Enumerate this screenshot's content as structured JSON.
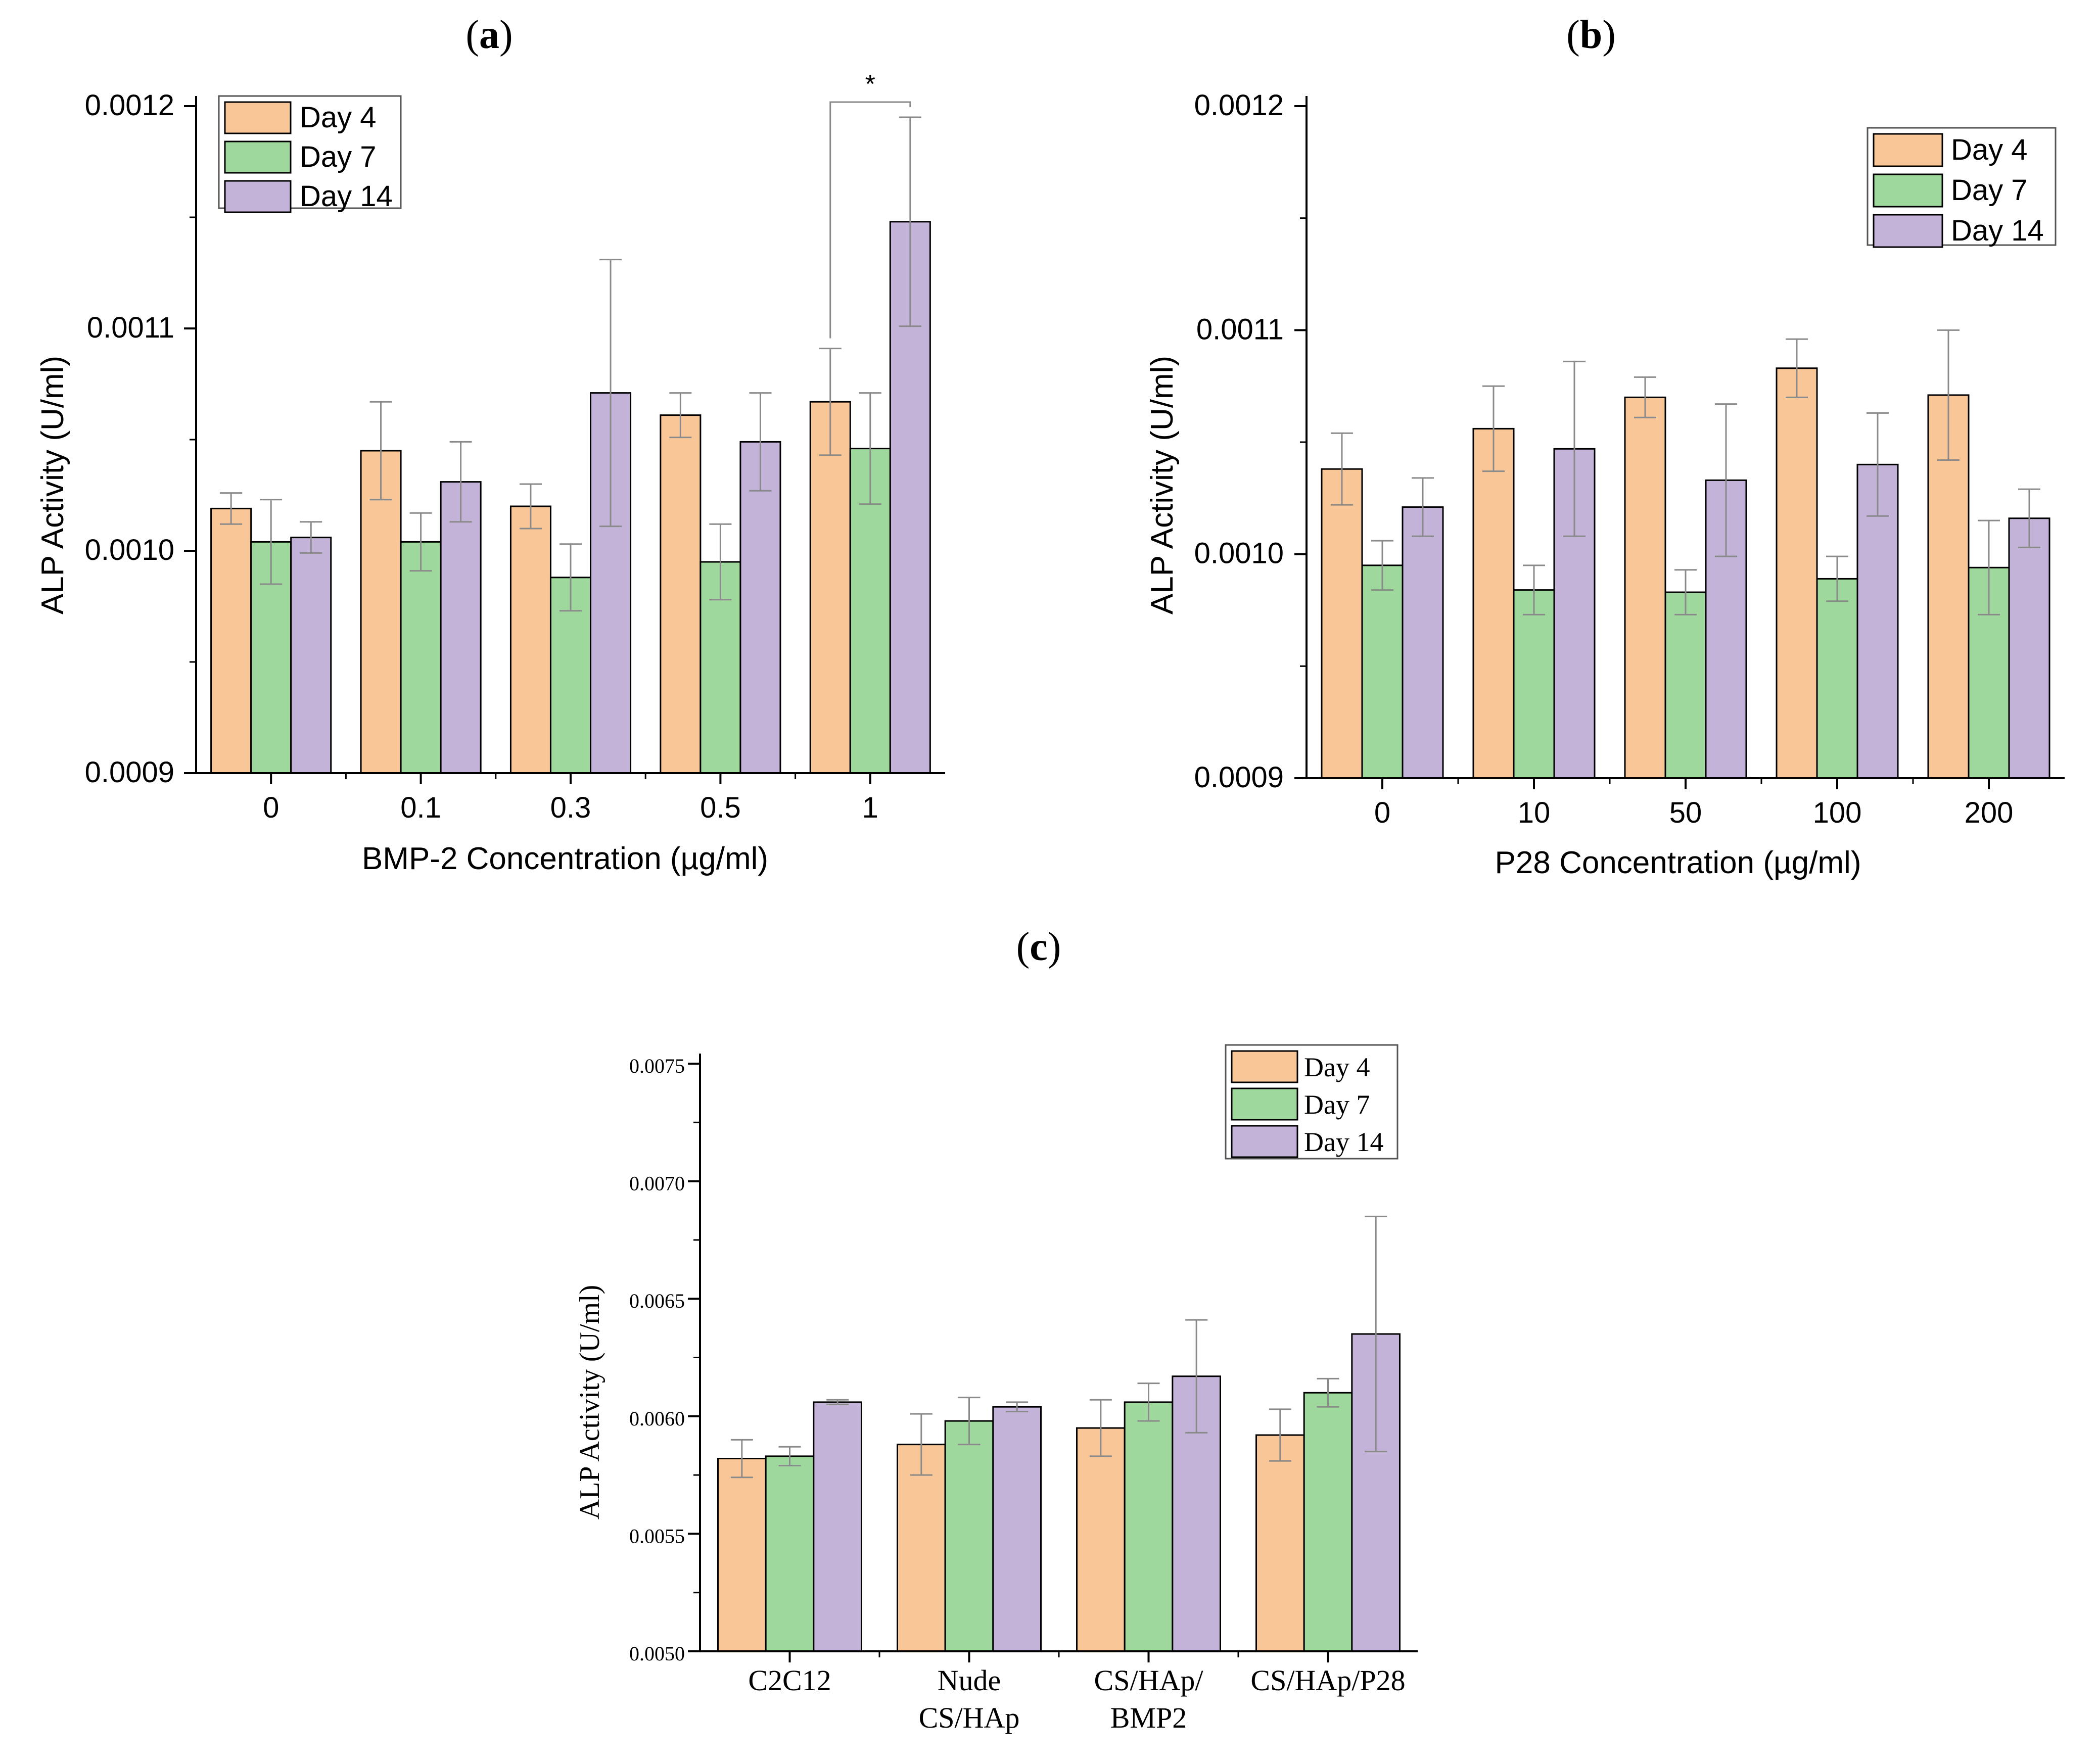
{
  "colors": {
    "day4": "#F9C698",
    "day7": "#9FD89D",
    "day14": "#C4B3D8",
    "error": "#8a8a8a"
  },
  "chart_data": [
    {
      "panel": "(a)",
      "panel_letter": "a",
      "type": "bar",
      "xlabel": "BMP-2 Concentration (µg/ml)",
      "ylabel": "ALP Activity (U/ml)",
      "categories": [
        "0",
        "0.1",
        "0.3",
        "0.5",
        "1"
      ],
      "ylim": [
        0.0009,
        0.0012
      ],
      "yticks": [
        "0.0009",
        "0.0010",
        "0.0011",
        "0.0012"
      ],
      "legend_position": "top-left",
      "series": [
        {
          "name": "Day 4",
          "values": [
            0.001019,
            0.001045,
            0.00102,
            0.001061,
            0.001067
          ],
          "errors": [
            7e-06,
            2.2e-05,
            1e-05,
            1e-05,
            2.4e-05
          ]
        },
        {
          "name": "Day 7",
          "values": [
            0.001004,
            0.001004,
            0.000988,
            0.000995,
            0.001046
          ],
          "errors": [
            1.9e-05,
            1.3e-05,
            1.5e-05,
            1.7e-05,
            2.5e-05
          ]
        },
        {
          "name": "Day 14",
          "values": [
            0.001006,
            0.001031,
            0.001071,
            0.001049,
            0.001148
          ],
          "errors": [
            7e-06,
            1.8e-05,
            6e-05,
            2.2e-05,
            4.7e-05
          ]
        }
      ],
      "annotations": [
        {
          "text": "*",
          "from_category": 4,
          "from_series": 0,
          "to_series": 2
        }
      ]
    },
    {
      "panel": "(b)",
      "panel_letter": "b",
      "type": "bar",
      "xlabel": "P28 Concentration (µg/ml)",
      "ylabel": "ALP Activity (U/ml)",
      "categories": [
        "0",
        "10",
        "50",
        "100",
        "200"
      ],
      "ylim": [
        0.0009,
        0.0012
      ],
      "yticks": [
        "0.0009",
        "0.0010",
        "0.0011",
        "0.0012"
      ],
      "legend_position": "top-right",
      "series": [
        {
          "name": "Day 4",
          "values": [
            0.001038,
            0.001056,
            0.00107,
            0.001083,
            0.001071
          ],
          "errors": [
            1.6e-05,
            1.9e-05,
            9e-06,
            1.3e-05,
            2.9e-05
          ]
        },
        {
          "name": "Day 7",
          "values": [
            0.000995,
            0.000984,
            0.000983,
            0.000989,
            0.000994
          ],
          "errors": [
            1.1e-05,
            1.1e-05,
            1e-05,
            1e-05,
            2.1e-05
          ]
        },
        {
          "name": "Day 14",
          "values": [
            0.001021,
            0.001047,
            0.001033,
            0.00104,
            0.001016
          ],
          "errors": [
            1.3e-05,
            3.9e-05,
            3.4e-05,
            2.3e-05,
            1.3e-05
          ]
        }
      ]
    },
    {
      "panel": "(c)",
      "panel_letter": "c",
      "type": "bar",
      "xlabel": "",
      "ylabel": "ALP Activity (U/ml)",
      "categories": [
        [
          "C2C12"
        ],
        [
          "Nude",
          "CS/HAp"
        ],
        [
          "CS/HAp/",
          "BMP2"
        ],
        [
          "CS/HAp/P28"
        ]
      ],
      "ylim": [
        0.005,
        0.0075
      ],
      "yticks": [
        "0.0050",
        "0.0055",
        "0.0060",
        "0.0065",
        "0.0070",
        "0.0075"
      ],
      "legend_position": "top-right",
      "series": [
        {
          "name": "Day 4",
          "values": [
            0.00582,
            0.00588,
            0.00595,
            0.00592
          ],
          "errors": [
            8e-05,
            0.00013,
            0.00012,
            0.00011
          ]
        },
        {
          "name": "Day 7",
          "values": [
            0.00583,
            0.00598,
            0.00606,
            0.0061
          ],
          "errors": [
            4e-05,
            0.0001,
            8e-05,
            6e-05
          ]
        },
        {
          "name": "Day 14",
          "values": [
            0.00606,
            0.00604,
            0.00617,
            0.00635
          ],
          "errors": [
            1e-05,
            2e-05,
            0.00024,
            0.0005
          ]
        }
      ]
    }
  ]
}
